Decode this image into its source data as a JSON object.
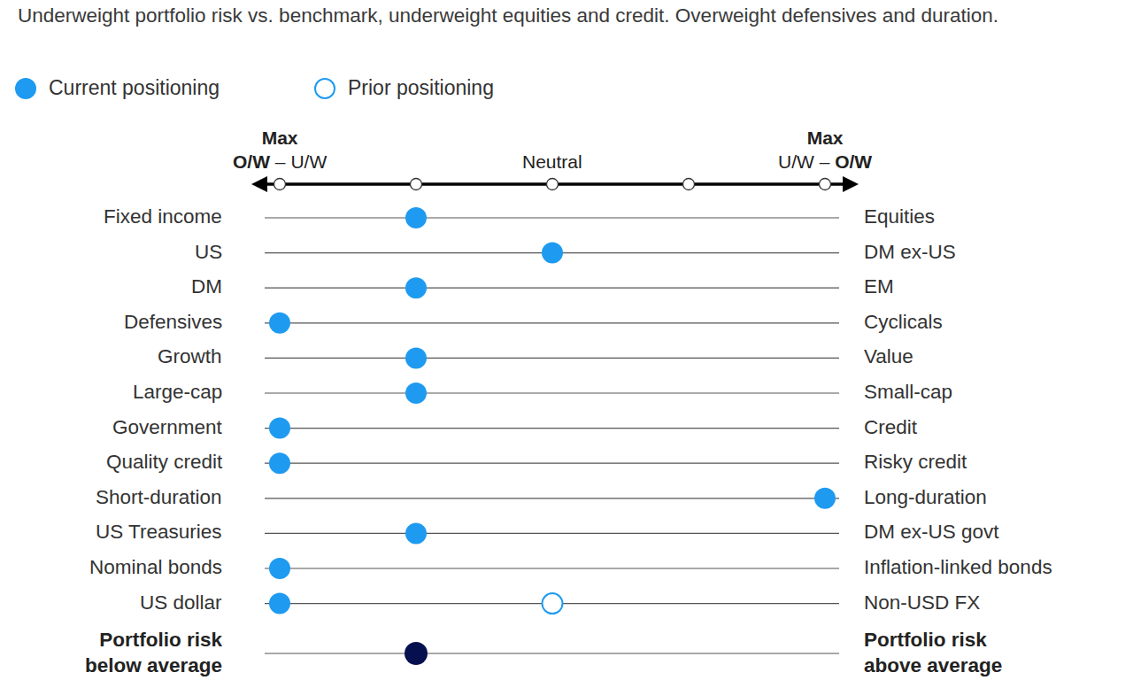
{
  "chart_data": {
    "type": "dot",
    "title": "Underweight portfolio risk vs. benchmark, underweight equities and credit. Overweight defensives and duration.",
    "categories": [
      "Fixed income",
      "US",
      "DM",
      "Defensives",
      "Growth",
      "Large-cap",
      "Government",
      "Quality credit",
      "Short-duration",
      "US Treasuries",
      "Nominal bonds",
      "US dollar"
    ],
    "right_categories": [
      "Equities",
      "DM ex-US",
      "EM",
      "Cyclicals",
      "Value",
      "Small-cap",
      "Credit",
      "Risky credit",
      "Long-duration",
      "DM ex-US govt",
      "Inflation-linked bonds",
      "Non-USD FX"
    ],
    "series": [
      {
        "name": "Current positioning",
        "color": "#1e9bf0",
        "marker": "filled",
        "values": [
          -1,
          0,
          -1,
          -2,
          -1,
          -1,
          -2,
          -2,
          2,
          -1,
          -2,
          -2
        ]
      },
      {
        "name": "Prior positioning",
        "color": "#1e9bf0",
        "marker": "hollow",
        "values": [
          null,
          null,
          null,
          null,
          null,
          null,
          null,
          null,
          null,
          null,
          null,
          0
        ]
      }
    ],
    "summary": {
      "left": "Portfolio risk below average",
      "right": "Portfolio risk above average",
      "value": -1,
      "color": "#06104f"
    },
    "xlim": [
      -2,
      2
    ],
    "xticks": [
      -2,
      -1,
      0,
      1,
      2
    ],
    "tick_labels": false,
    "scale_labels": [
      {
        "value": -2,
        "label": "Max O/W – U/W"
      },
      {
        "value": 0,
        "label": "Neutral"
      },
      {
        "value": 2,
        "label": "Max U/W – O/W"
      }
    ],
    "legend": "top"
  }
}
